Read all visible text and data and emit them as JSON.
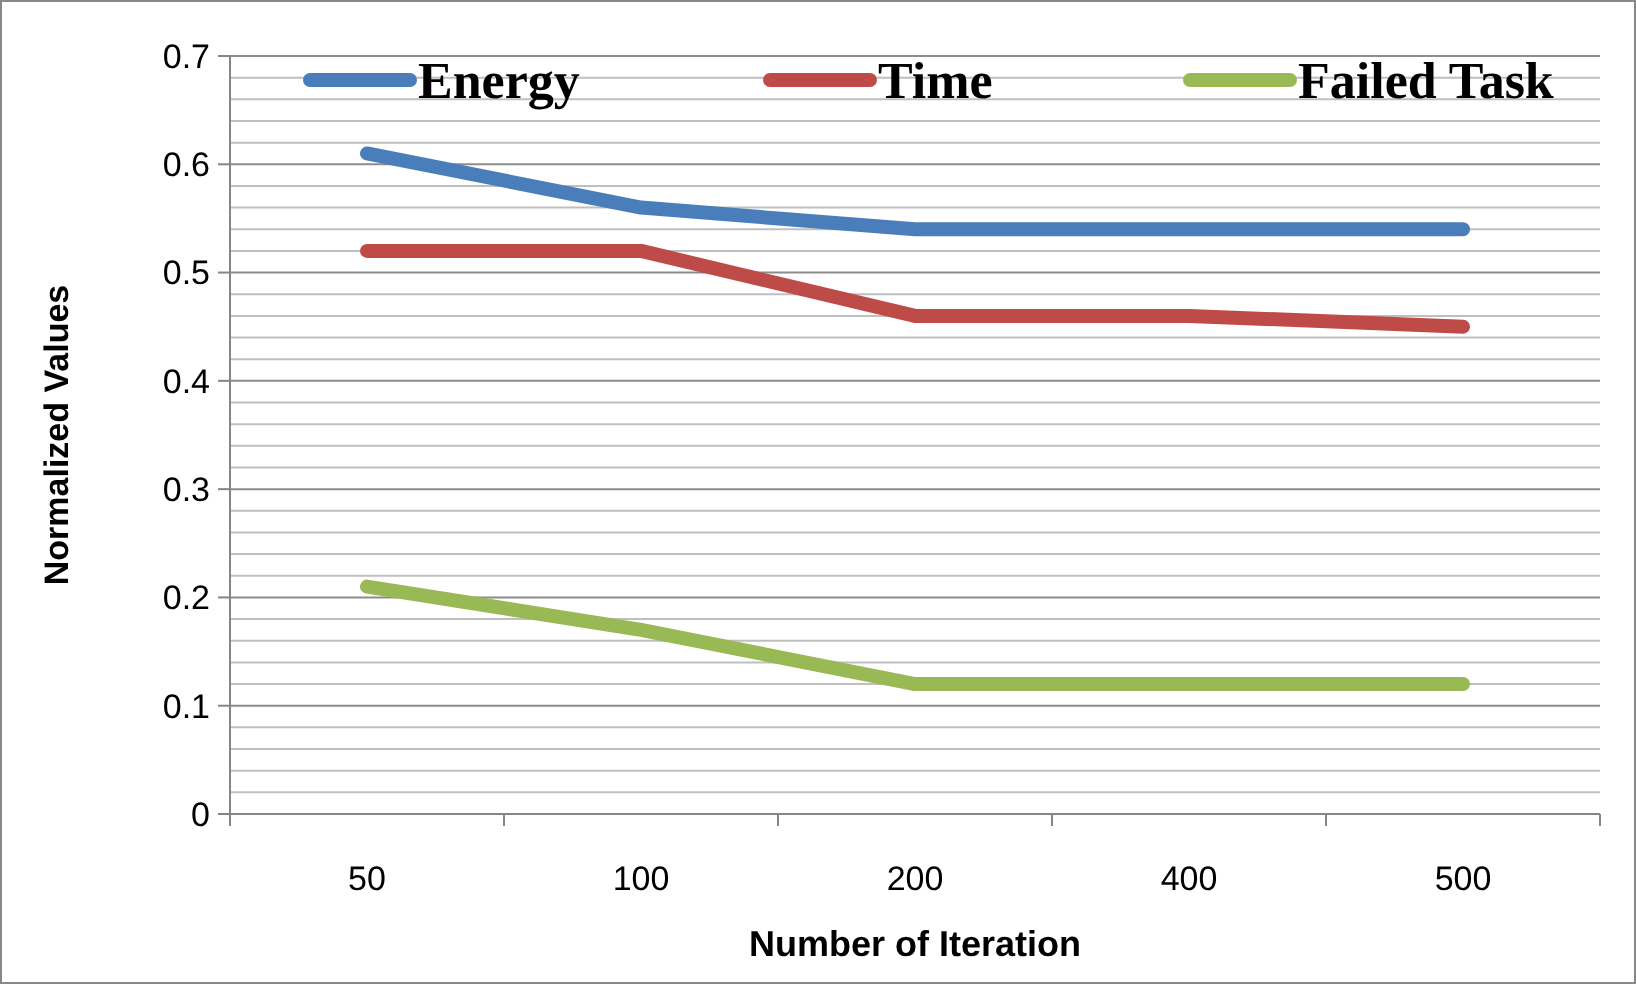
{
  "chart_data": {
    "type": "line",
    "xlabel": "Number of Iteration",
    "ylabel": "Normalized Values",
    "categories": [
      "50",
      "100",
      "200",
      "400",
      "500"
    ],
    "series": [
      {
        "name": "Energy",
        "color": "#4a7ebb",
        "values": [
          0.61,
          0.56,
          0.54,
          0.54,
          0.54
        ]
      },
      {
        "name": "Time",
        "color": "#be4b48",
        "values": [
          0.52,
          0.52,
          0.46,
          0.46,
          0.45
        ]
      },
      {
        "name": "Failed Task",
        "color": "#98b954",
        "values": [
          0.21,
          0.17,
          0.12,
          0.12,
          0.12
        ]
      }
    ],
    "ylim": [
      0,
      0.7
    ],
    "yticks": [
      0,
      {
        "value": 0.02,
        "label": null
      },
      {
        "value": 0.04,
        "label": null
      },
      {
        "value": 0.06,
        "label": null
      },
      {
        "value": 0.08,
        "label": null
      },
      {
        "value": 0.1,
        "label": "0.1"
      },
      {
        "value": 0.12,
        "label": null
      },
      {
        "value": 0.14,
        "label": null
      },
      {
        "value": 0.16,
        "label": null
      },
      {
        "value": 0.18,
        "label": null
      },
      {
        "value": 0.2,
        "label": "0.2"
      },
      {
        "value": 0.22,
        "label": null
      },
      {
        "value": 0.24,
        "label": null
      },
      {
        "value": 0.26,
        "label": null
      },
      {
        "value": 0.28,
        "label": null
      },
      {
        "value": 0.3,
        "label": "0.3"
      },
      {
        "value": 0.32,
        "label": null
      },
      {
        "value": 0.34,
        "label": null
      },
      {
        "value": 0.36,
        "label": null
      },
      {
        "value": 0.38,
        "label": null
      },
      {
        "value": 0.4,
        "label": "0.4"
      },
      {
        "value": 0.42,
        "label": null
      },
      {
        "value": 0.44,
        "label": null
      },
      {
        "value": 0.46,
        "label": null
      },
      {
        "value": 0.48,
        "label": null
      },
      {
        "value": 0.5,
        "label": "0.5"
      },
      {
        "value": 0.52,
        "label": null
      },
      {
        "value": 0.54,
        "label": null
      },
      {
        "value": 0.56,
        "label": null
      },
      {
        "value": 0.58,
        "label": null
      },
      {
        "value": 0.6,
        "label": "0.6"
      },
      {
        "value": 0.62,
        "label": null
      },
      {
        "value": 0.64,
        "label": null
      },
      {
        "value": 0.66,
        "label": null
      },
      {
        "value": 0.68,
        "label": null
      },
      {
        "value": 0.7,
        "label": "0.7"
      }
    ],
    "grid": "y",
    "legend": "top",
    "marker": "none",
    "line_style": "solid"
  }
}
